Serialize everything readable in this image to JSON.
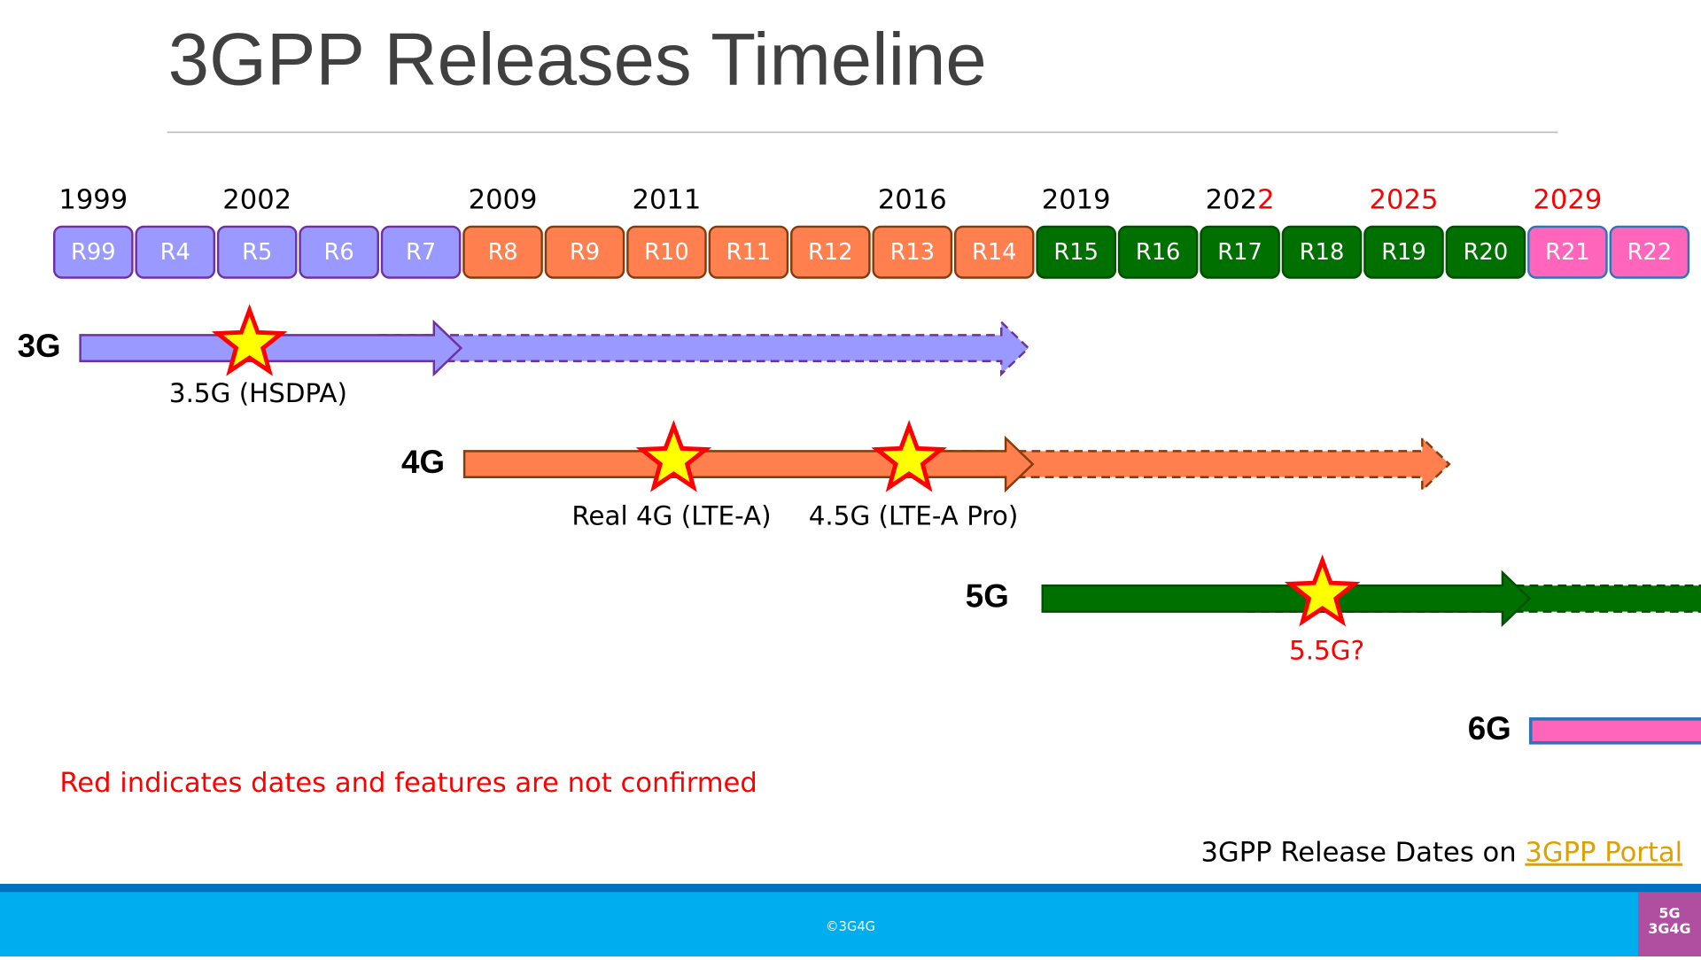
{
  "title": "3GPP Releases Timeline",
  "years": [
    {
      "parts": [
        {
          "text": "1999",
          "unconfirmed": false
        }
      ]
    },
    {
      "parts": [
        {
          "text": "2002",
          "unconfirmed": false
        }
      ]
    },
    {
      "parts": [
        {
          "text": "2009",
          "unconfirmed": false
        }
      ]
    },
    {
      "parts": [
        {
          "text": "2011",
          "unconfirmed": false
        }
      ]
    },
    {
      "parts": [
        {
          "text": "2016",
          "unconfirmed": false
        }
      ]
    },
    {
      "parts": [
        {
          "text": "2019",
          "unconfirmed": false
        }
      ]
    },
    {
      "parts": [
        {
          "text": "202",
          "unconfirmed": false
        },
        {
          "text": "2",
          "unconfirmed": true
        }
      ]
    },
    {
      "parts": [
        {
          "text": "2025",
          "unconfirmed": true
        }
      ]
    },
    {
      "parts": [
        {
          "text": "2029",
          "unconfirmed": true
        }
      ]
    }
  ],
  "generations": [
    {
      "label": "3G",
      "fill": "#9999ff",
      "stroke": "#7030a0",
      "milestones": [
        {
          "text": "3.5G (HSDPA)",
          "unconfirmed": false
        }
      ]
    },
    {
      "label": "4G",
      "fill": "#ff7f4f",
      "stroke": "#843c0c",
      "milestones": [
        {
          "text": "Real 4G (LTE-A)",
          "unconfirmed": false
        },
        {
          "text": "4.5G (LTE-A Pro)",
          "unconfirmed": false
        }
      ]
    },
    {
      "label": "5G",
      "fill": "#007000",
      "stroke": "#005000",
      "milestones": [
        {
          "text": "5.5G?",
          "unconfirmed": true
        }
      ]
    },
    {
      "label": "6G",
      "fill": "#ff66bb",
      "stroke": "#2f75b6",
      "milestones": []
    }
  ],
  "releases": [
    {
      "label": "R99",
      "generation": 0
    },
    {
      "label": "R4",
      "generation": 0
    },
    {
      "label": "R5",
      "generation": 0
    },
    {
      "label": "R6",
      "generation": 0
    },
    {
      "label": "R7",
      "generation": 0
    },
    {
      "label": "R8",
      "generation": 1
    },
    {
      "label": "R9",
      "generation": 1
    },
    {
      "label": "R10",
      "generation": 1
    },
    {
      "label": "R11",
      "generation": 1
    },
    {
      "label": "R12",
      "generation": 1
    },
    {
      "label": "R13",
      "generation": 1
    },
    {
      "label": "R14",
      "generation": 1
    },
    {
      "label": "R15",
      "generation": 2
    },
    {
      "label": "R16",
      "generation": 2
    },
    {
      "label": "R17",
      "generation": 2
    },
    {
      "label": "R18",
      "generation": 2
    },
    {
      "label": "R19",
      "generation": 2
    },
    {
      "label": "R20",
      "generation": 2
    },
    {
      "label": "R21",
      "generation": 3
    },
    {
      "label": "R22",
      "generation": 3
    }
  ],
  "unconfirmed_color": "#ff0000",
  "note": "Red indicates dates and features are not confirmed",
  "source": {
    "text": "3GPP Release Dates on ",
    "link": "3GPP Portal"
  },
  "footer": {
    "copyright": "©3G4G",
    "logo_top": "5G",
    "logo_bottom": "3G4G"
  }
}
